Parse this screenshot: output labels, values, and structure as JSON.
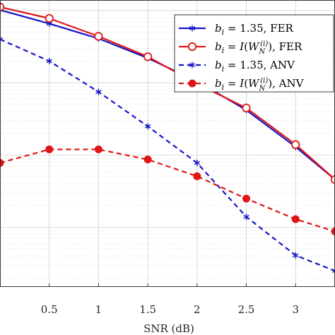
{
  "chart_data": {
    "type": "line",
    "xlabel": "SNR (dB)",
    "ylabel": "",
    "x_ticks": [
      "0.5",
      "1",
      "1.5",
      "2",
      "2.5",
      "3"
    ],
    "xlim": [
      0,
      3.4
    ],
    "y_scale": "log",
    "ylim": [
      0.00015,
      1.4
    ],
    "grid": true,
    "legend_position": "top-right",
    "series": [
      {
        "name": "b_i = 1.35, FER",
        "legend_parts": [
          "b",
          "i",
          " = 1.35, FER"
        ],
        "color": "#1515c8",
        "style": "solid",
        "marker": "asterisk",
        "x": [
          0,
          0.5,
          1,
          1.5,
          2,
          2.5,
          3,
          3.4
        ],
        "y": [
          1.02,
          0.66,
          0.41,
          0.22,
          0.105,
          0.042,
          0.013,
          0.0046
        ]
      },
      {
        "name": "b_i = I(W_N^(i)), FER",
        "legend_parts": [
          "b",
          "i",
          " = ",
          "I",
          "(",
          "W",
          "N",
          "(i)",
          "), FER"
        ],
        "color": "#e01515",
        "style": "solid",
        "marker": "circle-open",
        "x": [
          0,
          0.5,
          1,
          1.5,
          2,
          2.5,
          3,
          3.4
        ],
        "y": [
          1.12,
          0.78,
          0.44,
          0.23,
          0.097,
          0.045,
          0.014,
          0.0046
        ]
      },
      {
        "name": "b_i = 1.35, ANV",
        "legend_parts": [
          "b",
          "i",
          " = 1.35, ANV"
        ],
        "color": "#1515c8",
        "style": "dashed",
        "marker": "asterisk",
        "x": [
          0,
          0.5,
          1,
          1.5,
          2,
          2.5,
          3,
          3.4
        ],
        "y": [
          0.4,
          0.2,
          0.075,
          0.025,
          0.0078,
          0.0014,
          0.00041,
          0.00025
        ]
      },
      {
        "name": "b_i = I(W_N^(i)), ANV",
        "legend_parts": [
          "b",
          "i",
          " = ",
          "I",
          "(",
          "W",
          "N",
          "(i)",
          "), ANV"
        ],
        "color": "#e01515",
        "style": "dashed",
        "marker": "circle-filled",
        "x": [
          0,
          0.5,
          1,
          1.5,
          2,
          2.5,
          3,
          3.4
        ],
        "y": [
          0.0078,
          0.012,
          0.012,
          0.0087,
          0.0051,
          0.0025,
          0.0013,
          0.00088
        ]
      }
    ]
  }
}
